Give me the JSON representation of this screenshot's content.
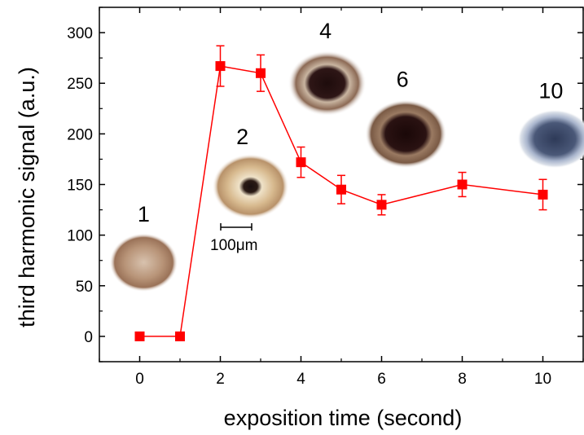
{
  "chart_data": {
    "type": "line",
    "xlabel": "exposition time (second)",
    "ylabel": "third harmonic signal (a.u.)",
    "xlim": [
      -1,
      11
    ],
    "ylim": [
      -25,
      325
    ],
    "x_ticks": [
      0,
      2,
      4,
      6,
      8,
      10
    ],
    "y_ticks": [
      0,
      50,
      100,
      150,
      200,
      250,
      300
    ],
    "x_tick_labels": [
      "0",
      "2",
      "4",
      "6",
      "8",
      "10"
    ],
    "y_tick_labels": [
      "0",
      "50",
      "100",
      "150",
      "200",
      "250",
      "300"
    ],
    "grid": false,
    "series": [
      {
        "x": [
          0,
          1,
          2,
          3,
          4,
          5,
          6,
          8,
          10
        ],
        "y": [
          0,
          0,
          267,
          260,
          172,
          145,
          130,
          150,
          140
        ],
        "error": [
          0,
          0,
          20,
          18,
          15,
          14,
          10,
          12,
          15
        ],
        "color": "#ff0000",
        "marker": "square"
      }
    ],
    "insets": [
      {
        "label": "1",
        "x": 0.1,
        "y": 73,
        "color": "#b08a72"
      },
      {
        "label": "2",
        "x": 2.75,
        "y": 148,
        "color": "#c8a880"
      },
      {
        "label": "4",
        "x": 4.65,
        "y": 250,
        "color": "#8c6a55"
      },
      {
        "label": "6",
        "x": 6.6,
        "y": 200,
        "color": "#7a5a45"
      },
      {
        "label": "10",
        "x": 10.3,
        "y": 195,
        "color": "#7888a8"
      }
    ],
    "scale_bar": {
      "label": "100μm"
    }
  }
}
